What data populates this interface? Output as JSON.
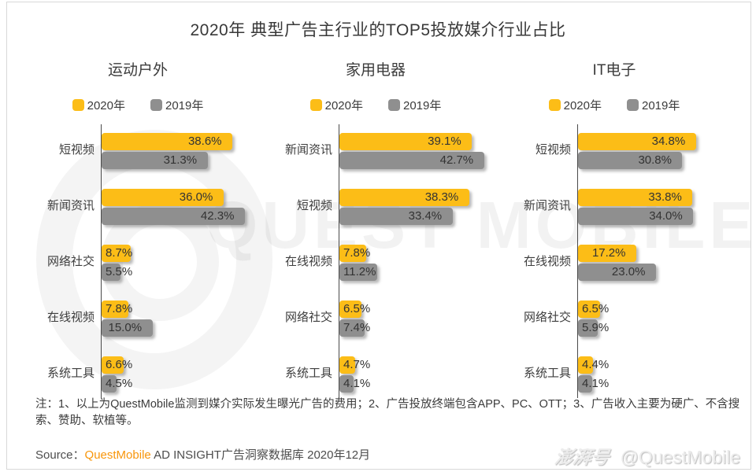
{
  "title": "2020年 典型广告主行业的TOP5投放媒介行业占比",
  "colors": {
    "series_2020": "#FCBD17",
    "series_2019": "#8F8F8F",
    "axis": "#4a4a4a",
    "brand_orange": "#F8960B"
  },
  "chart_data": [
    {
      "type": "bar",
      "title": "运动户外",
      "orientation": "horizontal",
      "unit": "%",
      "categories": [
        "短视频",
        "新闻资讯",
        "网络社交",
        "在线视频",
        "系统工具"
      ],
      "series": [
        {
          "name": "2020年",
          "color": "#FCBD17",
          "values": [
            38.6,
            36.0,
            8.7,
            7.8,
            6.6
          ]
        },
        {
          "name": "2019年",
          "color": "#8F8F8F",
          "values": [
            31.3,
            42.3,
            5.5,
            15.0,
            4.5
          ]
        }
      ],
      "xlim": [
        0,
        45
      ],
      "legend_position": "top",
      "grid": false
    },
    {
      "type": "bar",
      "title": "家用电器",
      "orientation": "horizontal",
      "unit": "%",
      "categories": [
        "新闻资讯",
        "短视频",
        "在线视频",
        "网络社交",
        "系统工具"
      ],
      "series": [
        {
          "name": "2020年",
          "color": "#FCBD17",
          "values": [
            39.1,
            38.3,
            7.8,
            6.5,
            4.7
          ]
        },
        {
          "name": "2019年",
          "color": "#8F8F8F",
          "values": [
            42.7,
            33.4,
            11.2,
            7.4,
            4.1
          ]
        }
      ],
      "xlim": [
        0,
        45
      ],
      "legend_position": "top",
      "grid": false
    },
    {
      "type": "bar",
      "title": "IT电子",
      "orientation": "horizontal",
      "unit": "%",
      "categories": [
        "短视频",
        "新闻资讯",
        "在线视频",
        "网络社交",
        "系统工具"
      ],
      "series": [
        {
          "name": "2020年",
          "color": "#FCBD17",
          "values": [
            34.8,
            33.8,
            17.2,
            6.5,
            4.4
          ]
        },
        {
          "name": "2019年",
          "color": "#8F8F8F",
          "values": [
            30.8,
            34.0,
            23.0,
            5.9,
            4.1
          ]
        }
      ],
      "xlim": [
        0,
        45
      ],
      "legend_position": "top",
      "grid": false
    }
  ],
  "footnote": "注：1、以上为QuestMobile监测到媒介实际发生曝光广告的费用；2、广告投放终端包含APP、PC、OTT；3、广告收入主要为硬广、不含搜索、赞助、软植等。",
  "source": {
    "prefix": "Source：",
    "brand": "QuestMobile",
    "suffix": " AD INSIGHT广告洞察数据库 2020年12月"
  },
  "watermark": {
    "big_text": "QUEST MOBILE",
    "badge": "澎湃号",
    "handle": "@QuestMobile"
  }
}
